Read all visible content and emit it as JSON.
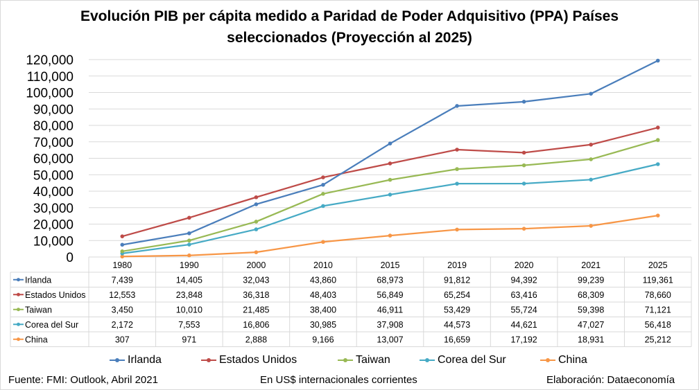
{
  "chart_data": {
    "type": "line",
    "title": "Evolución PIB per cápita medido a Paridad de Poder Adquisitivo (PPA)  Países seleccionados (Proyección al 2025)",
    "title_lines": [
      "Evolución PIB per cápita medido a Paridad de Poder Adquisitivo (PPA)  Países",
      "seleccionados (Proyección al 2025)"
    ],
    "xlabel": "",
    "ylabel": "",
    "categories": [
      "1980",
      "1990",
      "2000",
      "2010",
      "2015",
      "2019",
      "2020",
      "2021",
      "2025"
    ],
    "ylim": [
      0,
      120000
    ],
    "yticks": [
      0,
      10000,
      20000,
      30000,
      40000,
      50000,
      60000,
      70000,
      80000,
      90000,
      100000,
      110000,
      120000
    ],
    "ytick_labels": [
      "0",
      "10,000",
      "20,000",
      "30,000",
      "40,000",
      "50,000",
      "60,000",
      "70,000",
      "80,000",
      "90,000",
      "100,000",
      "110,000",
      "120,000"
    ],
    "grid": true,
    "legend_position": "bottom",
    "data_table": true,
    "series": [
      {
        "name": "Irlanda",
        "color": "#4a7ebb",
        "values": [
          7439,
          14405,
          32043,
          43860,
          68973,
          91812,
          94392,
          99239,
          119361
        ],
        "labels": [
          "7,439",
          "14,405",
          "32,043",
          "43,860",
          "68,973",
          "91,812",
          "94,392",
          "99,239",
          "119,361"
        ]
      },
      {
        "name": "Estados Unidos",
        "color": "#be4b48",
        "values": [
          12553,
          23848,
          36318,
          48403,
          56849,
          65254,
          63416,
          68309,
          78660
        ],
        "labels": [
          "12,553",
          "23,848",
          "36,318",
          "48,403",
          "56,849",
          "65,254",
          "63,416",
          "68,309",
          "78,660"
        ]
      },
      {
        "name": "Taiwan",
        "color": "#98b954",
        "values": [
          3450,
          10010,
          21485,
          38400,
          46911,
          53429,
          55724,
          59398,
          71121
        ],
        "labels": [
          "3,450",
          "10,010",
          "21,485",
          "38,400",
          "46,911",
          "53,429",
          "55,724",
          "59,398",
          "71,121"
        ]
      },
      {
        "name": "Corea del Sur",
        "color": "#46aac5",
        "values": [
          2172,
          7553,
          16806,
          30985,
          37908,
          44573,
          44621,
          47027,
          56418
        ],
        "labels": [
          "2,172",
          "7,553",
          "16,806",
          "30,985",
          "37,908",
          "44,573",
          "44,621",
          "47,027",
          "56,418"
        ]
      },
      {
        "name": "China",
        "color": "#f79646",
        "values": [
          307,
          971,
          2888,
          9166,
          13007,
          16659,
          17192,
          18931,
          25212
        ],
        "labels": [
          "307",
          "971",
          "2,888",
          "9,166",
          "13,007",
          "16,659",
          "17,192",
          "18,931",
          "25,212"
        ]
      }
    ]
  },
  "footer": {
    "source": "Fuente: FMI: Outlook, Abril 2021",
    "units": "En US$ internacionales corrientes",
    "credit": "Elaboración: Dataeconomía"
  }
}
